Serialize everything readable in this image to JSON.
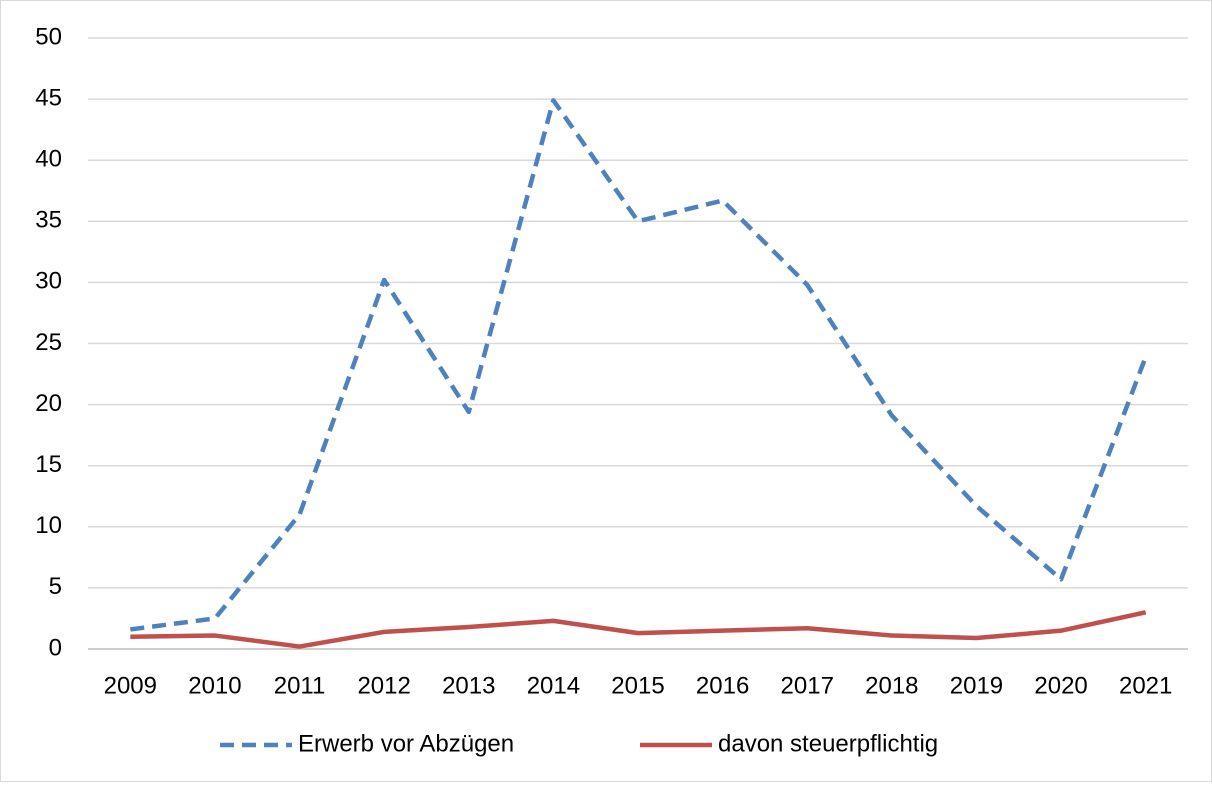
{
  "chart_data": {
    "type": "line",
    "categories": [
      "2009",
      "2010",
      "2011",
      "2012",
      "2013",
      "2014",
      "2015",
      "2016",
      "2017",
      "2018",
      "2019",
      "2020",
      "2021"
    ],
    "series": [
      {
        "name": "Erwerb vor Abzügen",
        "color": "#4f81bd",
        "line_style": "dashed",
        "values": [
          1.6,
          2.5,
          11,
          30.2,
          19.4,
          44.9,
          35,
          36.7,
          29.8,
          19.1,
          11.7,
          5.7,
          23.9
        ]
      },
      {
        "name": "davon steuerpflichtig",
        "color": "#c0504d",
        "line_style": "solid",
        "values": [
          1.0,
          1.1,
          0.2,
          1.4,
          1.8,
          2.3,
          1.3,
          1.5,
          1.7,
          1.1,
          0.9,
          1.5,
          3.0
        ]
      }
    ],
    "ylim": [
      0,
      50
    ],
    "yticks": [
      0,
      5,
      10,
      15,
      20,
      25,
      30,
      35,
      40,
      45,
      50
    ],
    "grid": true,
    "legend": "bottom"
  }
}
